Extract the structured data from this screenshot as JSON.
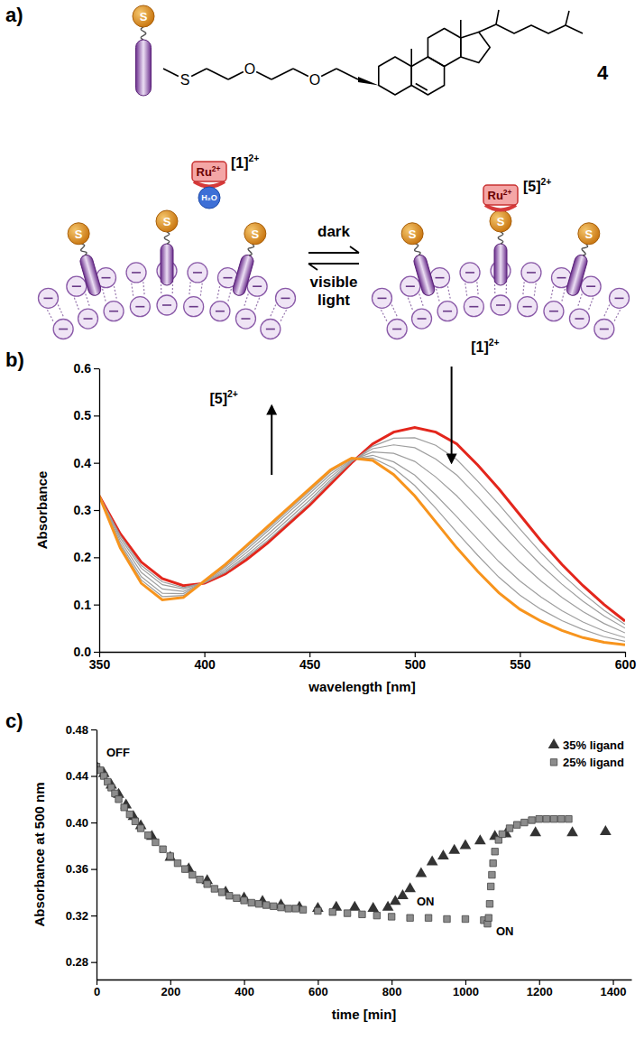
{
  "diagram": {
    "panel_label": "a)",
    "compound": {
      "atoms": [
        "S",
        "O",
        "O"
      ],
      "label": "4"
    },
    "ligand_atom": "S",
    "metal": {
      "label": "Ru",
      "superscript": "2+"
    },
    "water": "H₂O",
    "states": [
      {
        "label": "[1]",
        "superscript": "2+"
      },
      {
        "label": "[5]",
        "superscript": "2+"
      }
    ],
    "forward": "dark",
    "reverse": [
      "visible",
      "light"
    ]
  },
  "chart_data": [
    {
      "type": "line",
      "panel_label": "b)",
      "x_label": "wavelength [nm]",
      "y_label": "Absorbance",
      "x": [
        350,
        360,
        370,
        380,
        390,
        400,
        410,
        420,
        430,
        440,
        450,
        460,
        470,
        480,
        490,
        500,
        510,
        520,
        530,
        540,
        550,
        560,
        570,
        580,
        590,
        600
      ],
      "xlim": [
        350,
        600
      ],
      "xticks": [
        350,
        400,
        450,
        500,
        550,
        600
      ],
      "ylim": [
        0,
        0.6
      ],
      "yticks": [
        {
          "value": 0,
          "label": "0.0"
        },
        0.1,
        0.2,
        0.3,
        0.4,
        0.5,
        0.6
      ],
      "series": [
        {
          "color": "#e3261c",
          "values": [
            0.33,
            0.25,
            0.19,
            0.155,
            0.14,
            0.145,
            0.165,
            0.195,
            0.23,
            0.27,
            0.31,
            0.355,
            0.4,
            0.44,
            0.465,
            0.475,
            0.465,
            0.44,
            0.395,
            0.345,
            0.29,
            0.235,
            0.185,
            0.14,
            0.1,
            0.065
          ]
        },
        {
          "color": "#9e9e9e",
          "values": [
            0.33,
            0.246,
            0.183,
            0.148,
            0.136,
            0.146,
            0.168,
            0.2,
            0.235,
            0.275,
            0.315,
            0.36,
            0.402,
            0.435,
            0.452,
            0.453,
            0.437,
            0.407,
            0.361,
            0.312,
            0.26,
            0.21,
            0.164,
            0.124,
            0.088,
            0.058
          ]
        },
        {
          "color": "#9e9e9e",
          "values": [
            0.33,
            0.241,
            0.177,
            0.142,
            0.133,
            0.147,
            0.171,
            0.204,
            0.241,
            0.281,
            0.321,
            0.364,
            0.403,
            0.43,
            0.438,
            0.432,
            0.408,
            0.374,
            0.328,
            0.279,
            0.23,
            0.184,
            0.143,
            0.107,
            0.076,
            0.05
          ]
        },
        {
          "color": "#9e9e9e",
          "values": [
            0.33,
            0.235,
            0.168,
            0.133,
            0.128,
            0.148,
            0.175,
            0.21,
            0.248,
            0.288,
            0.328,
            0.37,
            0.405,
            0.423,
            0.42,
            0.403,
            0.37,
            0.33,
            0.283,
            0.235,
            0.19,
            0.15,
            0.115,
            0.085,
            0.06,
            0.04
          ]
        },
        {
          "color": "#9e9e9e",
          "values": [
            0.33,
            0.229,
            0.159,
            0.124,
            0.123,
            0.149,
            0.179,
            0.216,
            0.255,
            0.295,
            0.335,
            0.376,
            0.407,
            0.416,
            0.402,
            0.374,
            0.332,
            0.286,
            0.238,
            0.191,
            0.15,
            0.116,
            0.087,
            0.063,
            0.044,
            0.03
          ]
        },
        {
          "color": "#9e9e9e",
          "values": [
            0.33,
            0.225,
            0.152,
            0.117,
            0.119,
            0.149,
            0.182,
            0.221,
            0.26,
            0.3,
            0.34,
            0.381,
            0.409,
            0.41,
            0.389,
            0.352,
            0.304,
            0.253,
            0.204,
            0.158,
            0.12,
            0.09,
            0.066,
            0.047,
            0.032,
            0.022
          ]
        },
        {
          "color": "#f7941d",
          "values": [
            0.33,
            0.22,
            0.145,
            0.11,
            0.115,
            0.15,
            0.185,
            0.225,
            0.265,
            0.305,
            0.345,
            0.385,
            0.41,
            0.405,
            0.375,
            0.33,
            0.275,
            0.22,
            0.17,
            0.125,
            0.09,
            0.065,
            0.045,
            0.03,
            0.02,
            0.015
          ]
        }
      ],
      "annotations": [
        {
          "label": "[1]",
          "superscript": "2+"
        },
        {
          "label": "[5]",
          "superscript": "2+"
        }
      ]
    },
    {
      "type": "scatter",
      "panel_label": "c)",
      "x_label": "time [min]",
      "y_label": "Absorbance at 500 nm",
      "xlim": [
        0,
        1450
      ],
      "xticks": [
        0,
        200,
        400,
        600,
        800,
        1000,
        1200,
        1400
      ],
      "ylim": [
        0.265,
        0.48
      ],
      "yticks": [
        0.28,
        0.32,
        0.36,
        {
          "value": 0.4,
          "label": "0.40"
        },
        0.44,
        0.48
      ],
      "legend": "upper right",
      "series": [
        {
          "name": "35% ligand",
          "marker": "triangle",
          "color": "#333333",
          "x": [
            0,
            20,
            40,
            60,
            80,
            100,
            120,
            150,
            200,
            250,
            300,
            350,
            400,
            450,
            500,
            550,
            600,
            650,
            700,
            750,
            790,
            810,
            830,
            850,
            880,
            910,
            940,
            970,
            1000,
            1040,
            1080,
            1110,
            1190,
            1290,
            1380
          ],
          "values": [
            0.448,
            0.442,
            0.432,
            0.424,
            0.415,
            0.405,
            0.397,
            0.388,
            0.37,
            0.36,
            0.35,
            0.34,
            0.335,
            0.332,
            0.329,
            0.327,
            0.326,
            0.327,
            0.327,
            0.326,
            0.327,
            0.332,
            0.337,
            0.343,
            0.356,
            0.366,
            0.371,
            0.376,
            0.38,
            0.384,
            0.388,
            0.39,
            0.391,
            0.391,
            0.392
          ]
        },
        {
          "name": "25% ligand",
          "marker": "square",
          "color": "#8c8c8c",
          "x": [
            0,
            10,
            20,
            30,
            40,
            50,
            60,
            75,
            90,
            105,
            120,
            140,
            160,
            180,
            200,
            220,
            240,
            260,
            280,
            300,
            320,
            340,
            360,
            380,
            400,
            420,
            440,
            460,
            480,
            500,
            520,
            540,
            560,
            600,
            640,
            680,
            720,
            760,
            800,
            850,
            900,
            950,
            1000,
            1050,
            1060,
            1063,
            1066,
            1069,
            1072,
            1075,
            1080,
            1090,
            1100,
            1120,
            1140,
            1160,
            1180,
            1200,
            1220,
            1240,
            1260,
            1280
          ],
          "values": [
            0.448,
            0.445,
            0.44,
            0.435,
            0.43,
            0.425,
            0.42,
            0.413,
            0.407,
            0.401,
            0.395,
            0.389,
            0.383,
            0.377,
            0.371,
            0.365,
            0.36,
            0.355,
            0.351,
            0.347,
            0.343,
            0.34,
            0.337,
            0.335,
            0.333,
            0.331,
            0.33,
            0.329,
            0.328,
            0.327,
            0.326,
            0.326,
            0.325,
            0.324,
            0.323,
            0.322,
            0.321,
            0.32,
            0.319,
            0.318,
            0.318,
            0.317,
            0.317,
            0.316,
            0.313,
            0.318,
            0.33,
            0.345,
            0.355,
            0.365,
            0.375,
            0.385,
            0.39,
            0.395,
            0.398,
            0.4,
            0.402,
            0.403,
            0.403,
            0.403,
            0.403,
            0.403
          ]
        }
      ],
      "annotations": [
        "OFF",
        "ON",
        "ON"
      ]
    }
  ]
}
